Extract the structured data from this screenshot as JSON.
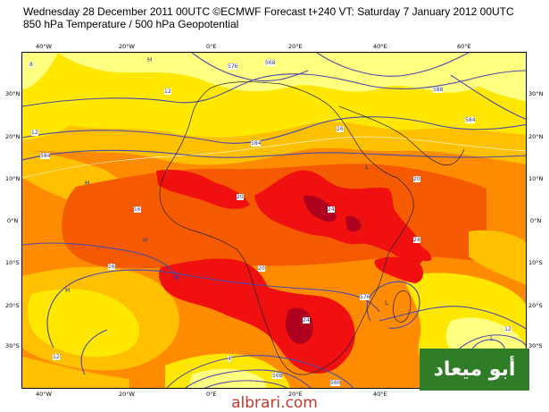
{
  "header": {
    "line1": "Wednesday 28 December 2011 00UTC ©ECMWF Forecast t+240 VT: Saturday 7 January 2012 00UTC",
    "line2": "850 hPa Temperature / 500 hPa Geopotential"
  },
  "axes": {
    "lon_labels": [
      "40°W",
      "20°W",
      "0°E",
      "20°E",
      "40°E",
      "60°E"
    ],
    "lat_labels": [
      "30°N",
      "20°N",
      "10°N",
      "0°N",
      "10°S",
      "20°S",
      "30°S"
    ]
  },
  "contour_labels": {
    "temperature": [
      "12",
      "12",
      "16",
      "16",
      "20",
      "20",
      "24",
      "24",
      "24",
      "20",
      "16",
      "12",
      "12",
      "8",
      "4"
    ],
    "geopotential": [
      "568",
      "576",
      "584",
      "584",
      "588",
      "584",
      "576",
      "568",
      "560"
    ],
    "highs_lows": [
      "H",
      "H",
      "H",
      "H",
      "L",
      "L",
      "H",
      "L"
    ]
  },
  "colors": {
    "pale_yellow": "#ffff80",
    "yellow": "#ffe700",
    "light_orange": "#ffc000",
    "orange": "#ff8c00",
    "dark_orange": "#f55a00",
    "red": "#f01010",
    "dark_red": "#b00020",
    "contour": "#4a4aa8"
  },
  "logo": {
    "text": "أبو ميعاد"
  },
  "watermark": {
    "text": "albrari.com"
  }
}
